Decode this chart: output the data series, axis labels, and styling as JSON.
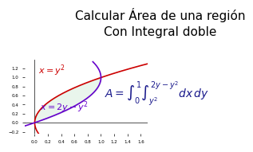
{
  "title_line1": "Calcular Área de una región",
  "title_line2": "Con Integral doble",
  "title_fontsize": 11,
  "bg_color": "#ffffff",
  "curve1_color": "#cc0000",
  "curve2_color": "#6600cc",
  "fill_color": "#d4edda",
  "fill_alpha": 0.5,
  "label1": "$x = y^2$",
  "label2": "$x = 2y - y^2$",
  "label1_color": "#cc0000",
  "label2_color": "#6600cc",
  "label1_fontsize": 8,
  "label2_fontsize": 8,
  "formula": "$A = \\int_0^1 \\int_{y^2}^{2y-y^2} dx\\,dy$",
  "formula_fontsize": 10,
  "xlim": [
    -0.15,
    1.7
  ],
  "ylim": [
    -0.25,
    1.4
  ],
  "xticks": [
    0.0,
    0.2,
    0.4,
    0.6,
    0.8,
    1.0,
    1.2,
    1.4,
    1.6
  ],
  "yticks": [
    -0.2,
    0.0,
    0.2,
    0.4,
    0.6,
    0.8,
    1.0,
    1.2
  ],
  "tick_fontsize": 4,
  "axis_color": "#333333"
}
